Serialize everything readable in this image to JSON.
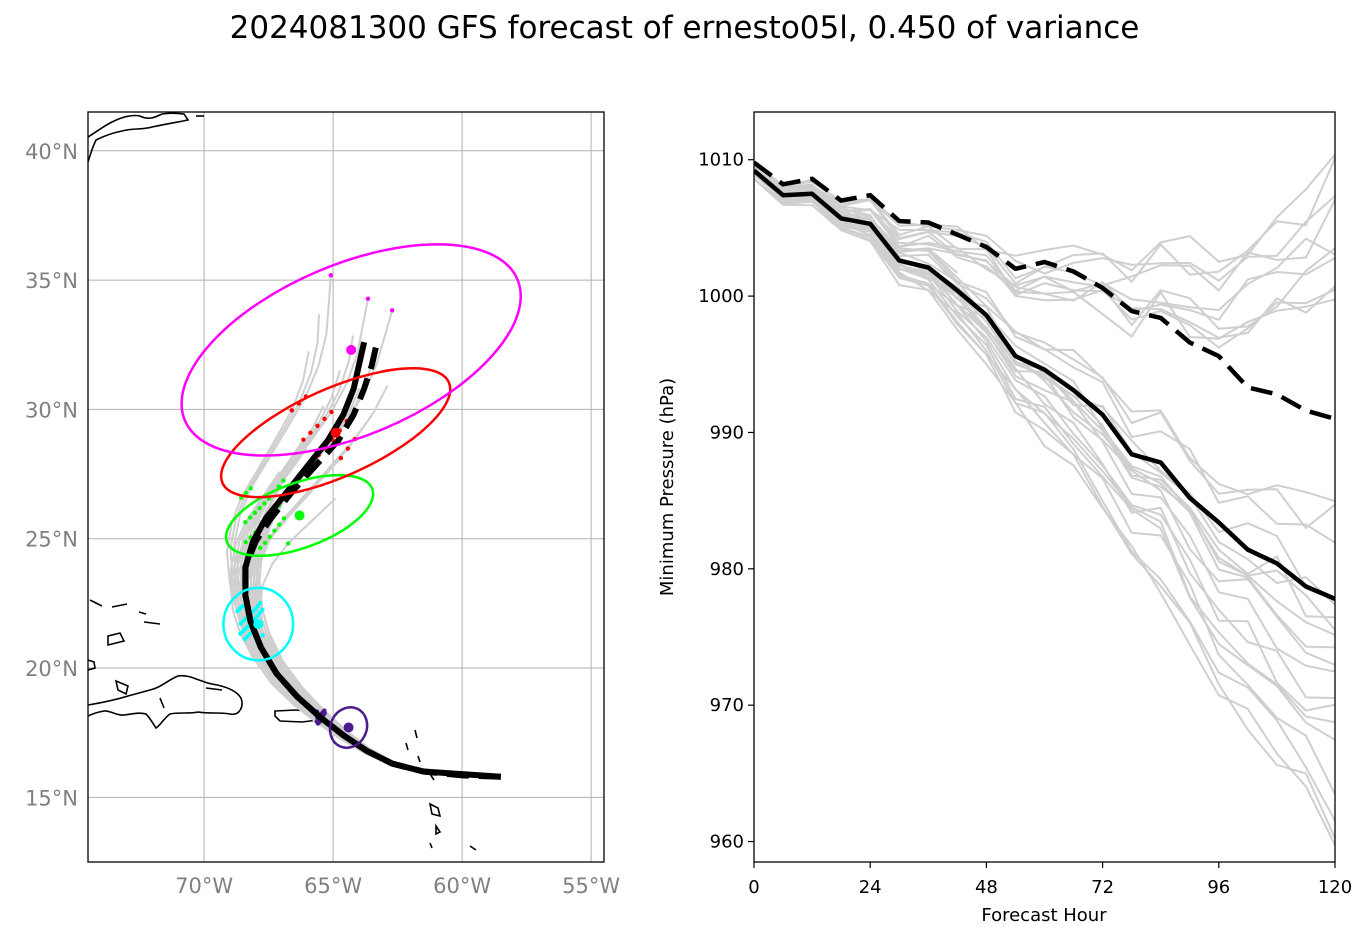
{
  "title": "2024081300 GFS forecast of ernesto05l, 0.450 of variance",
  "colors": {
    "ensemble": "#cfcfcf",
    "mean": "#000000",
    "map_tick": "#808080",
    "ellipses": [
      "#4b1a8c",
      "#00ffff",
      "#00ff00",
      "#ff0000",
      "#ff00ff"
    ]
  },
  "chart_data": [
    {
      "type": "map",
      "xlabel": "",
      "ylabel": "",
      "xlim": [
        -74.5,
        -54.5
      ],
      "ylim": [
        12.5,
        41.5
      ],
      "grid": true,
      "x_ticks": [
        -70,
        -65,
        -60,
        -55
      ],
      "x_tick_labels": [
        "70°W",
        "65°W",
        "60°W",
        "55°W"
      ],
      "y_ticks": [
        15,
        20,
        25,
        30,
        35,
        40
      ],
      "y_tick_labels": [
        "15°N",
        "20°N",
        "25°N",
        "30°N",
        "35°N",
        "40°N"
      ],
      "mean_track_solid": [
        [
          -58.5,
          15.8
        ],
        [
          -60.0,
          15.9
        ],
        [
          -61.5,
          16.0
        ],
        [
          -62.7,
          16.3
        ],
        [
          -63.7,
          16.8
        ],
        [
          -64.6,
          17.4
        ],
        [
          -65.5,
          18.1
        ],
        [
          -66.4,
          18.9
        ],
        [
          -67.2,
          19.8
        ],
        [
          -67.8,
          20.8
        ],
        [
          -68.2,
          21.8
        ],
        [
          -68.4,
          22.8
        ],
        [
          -68.4,
          23.9
        ],
        [
          -68.1,
          24.9
        ],
        [
          -67.6,
          25.8
        ],
        [
          -66.8,
          26.8
        ],
        [
          -66.0,
          27.8
        ],
        [
          -65.2,
          28.8
        ],
        [
          -64.6,
          29.8
        ],
        [
          -64.2,
          30.8
        ],
        [
          -64.0,
          31.7
        ],
        [
          -63.8,
          32.6
        ]
      ],
      "mean_track_dashed": [
        [
          -58.5,
          15.8
        ],
        [
          -60.0,
          15.85
        ],
        [
          -61.5,
          16.0
        ],
        [
          -62.7,
          16.3
        ],
        [
          -63.7,
          16.8
        ],
        [
          -64.6,
          17.4
        ],
        [
          -65.5,
          18.1
        ],
        [
          -66.4,
          18.9
        ],
        [
          -67.2,
          19.8
        ],
        [
          -67.8,
          20.8
        ],
        [
          -68.2,
          21.8
        ],
        [
          -68.4,
          22.8
        ],
        [
          -68.4,
          23.9
        ],
        [
          -68.0,
          24.9
        ],
        [
          -67.4,
          25.8
        ],
        [
          -66.6,
          26.8
        ],
        [
          -65.7,
          27.8
        ],
        [
          -64.8,
          28.8
        ],
        [
          -64.2,
          29.8
        ],
        [
          -63.8,
          30.8
        ],
        [
          -63.5,
          31.7
        ],
        [
          -63.3,
          32.6
        ]
      ],
      "ellipses": [
        {
          "lon": -64.4,
          "lat": 17.7,
          "rx_deg": 0.7,
          "ry_deg": 0.8,
          "angle": 25,
          "color": "#4b1a8c"
        },
        {
          "lon": -67.9,
          "lat": 21.7,
          "rx_deg": 1.35,
          "ry_deg": 1.4,
          "angle": 0,
          "color": "#00ffff"
        },
        {
          "lon": -66.3,
          "lat": 25.9,
          "rx_deg": 3.0,
          "ry_deg": 1.25,
          "angle": -20,
          "color": "#00ff00"
        },
        {
          "lon": -64.9,
          "lat": 29.1,
          "rx_deg": 4.8,
          "ry_deg": 1.7,
          "angle": -24,
          "color": "#ff0000"
        },
        {
          "lon": -64.3,
          "lat": 32.3,
          "rx_deg": 7.0,
          "ry_deg": 3.3,
          "angle": -23,
          "color": "#ff00ff"
        }
      ]
    },
    {
      "type": "line",
      "xlabel": "Forecast Hour",
      "ylabel": "Minimum Pressure (hPa)",
      "xlim": [
        0,
        120
      ],
      "ylim": [
        958.5,
        1013.5
      ],
      "x_ticks": [
        0,
        24,
        48,
        72,
        96,
        120
      ],
      "y_ticks": [
        960,
        970,
        980,
        990,
        1000,
        1010
      ],
      "grid": false,
      "x": [
        0,
        6,
        12,
        18,
        24,
        30,
        36,
        42,
        48,
        54,
        60,
        66,
        72,
        78,
        84,
        90,
        96,
        102,
        108,
        114,
        120
      ],
      "series": [
        {
          "style": "solid",
          "values": [
            1009.2,
            1007.4,
            1007.5,
            1005.7,
            1005.3,
            1002.6,
            1002.1,
            1000.4,
            998.6,
            995.6,
            994.6,
            993.1,
            991.3,
            988.4,
            987.8,
            985.2,
            983.4,
            981.4,
            980.4,
            978.7,
            977.8
          ]
        },
        {
          "style": "dashed",
          "values": [
            1009.8,
            1008.2,
            1008.6,
            1007.0,
            1007.4,
            1005.5,
            1005.4,
            1004.5,
            1003.6,
            1002.0,
            1002.5,
            1001.8,
            1000.6,
            998.9,
            998.4,
            996.6,
            995.6,
            993.3,
            992.8,
            991.6,
            991.0
          ]
        }
      ]
    }
  ]
}
